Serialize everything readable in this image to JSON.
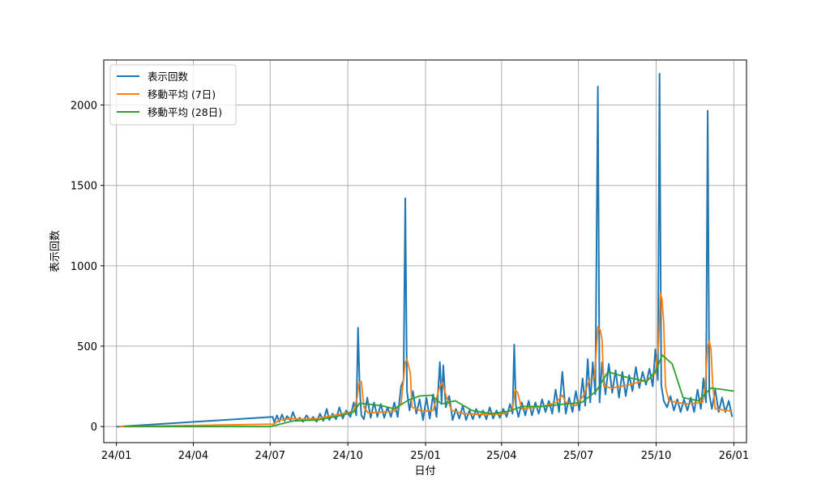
{
  "chart_data": {
    "type": "line",
    "xlabel": "日付",
    "ylabel": "表示回数",
    "x_range": [
      "2023-12-17",
      "2026-01-16"
    ],
    "ylim": [
      -100,
      2280
    ],
    "grid": true,
    "legend_position": "top-left",
    "x_ticks": [
      {
        "date": "2024-01-01",
        "label": "24/01"
      },
      {
        "date": "2024-04-01",
        "label": "24/04"
      },
      {
        "date": "2024-07-01",
        "label": "24/07"
      },
      {
        "date": "2024-10-01",
        "label": "24/10"
      },
      {
        "date": "2025-01-01",
        "label": "25/01"
      },
      {
        "date": "2025-04-01",
        "label": "25/04"
      },
      {
        "date": "2025-07-01",
        "label": "25/07"
      },
      {
        "date": "2025-10-01",
        "label": "25/10"
      },
      {
        "date": "2026-01-01",
        "label": "26/01"
      }
    ],
    "y_ticks": [
      {
        "value": 0,
        "label": "0"
      },
      {
        "value": 500,
        "label": "500"
      },
      {
        "value": 1000,
        "label": "1000"
      },
      {
        "value": 1500,
        "label": "1500"
      },
      {
        "value": 2000,
        "label": "2000"
      }
    ],
    "series": [
      {
        "name": "表示回数",
        "color": "#1f77b4",
        "points": [
          [
            "2024-01-01",
            0
          ],
          [
            "2024-01-04",
            0
          ],
          [
            "2024-07-04",
            60
          ],
          [
            "2024-07-06",
            25
          ],
          [
            "2024-07-09",
            70
          ],
          [
            "2024-07-12",
            30
          ],
          [
            "2024-07-15",
            75
          ],
          [
            "2024-07-18",
            35
          ],
          [
            "2024-07-21",
            65
          ],
          [
            "2024-07-25",
            40
          ],
          [
            "2024-07-28",
            90
          ],
          [
            "2024-08-01",
            35
          ],
          [
            "2024-08-05",
            55
          ],
          [
            "2024-08-09",
            30
          ],
          [
            "2024-08-13",
            70
          ],
          [
            "2024-08-17",
            40
          ],
          [
            "2024-08-21",
            60
          ],
          [
            "2024-08-25",
            30
          ],
          [
            "2024-08-29",
            80
          ],
          [
            "2024-09-02",
            35
          ],
          [
            "2024-09-06",
            110
          ],
          [
            "2024-09-09",
            40
          ],
          [
            "2024-09-13",
            80
          ],
          [
            "2024-09-17",
            45
          ],
          [
            "2024-09-21",
            120
          ],
          [
            "2024-09-25",
            50
          ],
          [
            "2024-09-29",
            100
          ],
          [
            "2024-10-04",
            60
          ],
          [
            "2024-10-08",
            150
          ],
          [
            "2024-10-11",
            70
          ],
          [
            "2024-10-13",
            615
          ],
          [
            "2024-10-15",
            250
          ],
          [
            "2024-10-17",
            70
          ],
          [
            "2024-10-20",
            45
          ],
          [
            "2024-10-24",
            180
          ],
          [
            "2024-10-28",
            55
          ],
          [
            "2024-11-01",
            150
          ],
          [
            "2024-11-05",
            60
          ],
          [
            "2024-11-09",
            140
          ],
          [
            "2024-11-13",
            55
          ],
          [
            "2024-11-17",
            120
          ],
          [
            "2024-11-21",
            60
          ],
          [
            "2024-11-25",
            150
          ],
          [
            "2024-11-29",
            60
          ],
          [
            "2024-12-03",
            250
          ],
          [
            "2024-12-06",
            290
          ],
          [
            "2024-12-08",
            1420
          ],
          [
            "2024-12-10",
            220
          ],
          [
            "2024-12-13",
            100
          ],
          [
            "2024-12-17",
            220
          ],
          [
            "2024-12-21",
            80
          ],
          [
            "2024-12-25",
            170
          ],
          [
            "2024-12-29",
            40
          ],
          [
            "2025-01-02",
            180
          ],
          [
            "2025-01-06",
            50
          ],
          [
            "2025-01-10",
            200
          ],
          [
            "2025-01-14",
            60
          ],
          [
            "2025-01-18",
            400
          ],
          [
            "2025-01-20",
            150
          ],
          [
            "2025-01-22",
            380
          ],
          [
            "2025-01-25",
            120
          ],
          [
            "2025-01-29",
            190
          ],
          [
            "2025-02-02",
            40
          ],
          [
            "2025-02-06",
            110
          ],
          [
            "2025-02-10",
            50
          ],
          [
            "2025-02-14",
            130
          ],
          [
            "2025-02-18",
            40
          ],
          [
            "2025-02-22",
            100
          ],
          [
            "2025-02-26",
            45
          ],
          [
            "2025-03-02",
            110
          ],
          [
            "2025-03-06",
            55
          ],
          [
            "2025-03-10",
            100
          ],
          [
            "2025-03-14",
            45
          ],
          [
            "2025-03-18",
            120
          ],
          [
            "2025-03-22",
            50
          ],
          [
            "2025-03-26",
            100
          ],
          [
            "2025-03-30",
            55
          ],
          [
            "2025-04-03",
            110
          ],
          [
            "2025-04-07",
            60
          ],
          [
            "2025-04-11",
            140
          ],
          [
            "2025-04-14",
            80
          ],
          [
            "2025-04-16",
            510
          ],
          [
            "2025-04-18",
            130
          ],
          [
            "2025-04-21",
            60
          ],
          [
            "2025-04-25",
            150
          ],
          [
            "2025-04-29",
            70
          ],
          [
            "2025-05-03",
            160
          ],
          [
            "2025-05-07",
            70
          ],
          [
            "2025-05-11",
            150
          ],
          [
            "2025-05-15",
            80
          ],
          [
            "2025-05-19",
            170
          ],
          [
            "2025-05-23",
            90
          ],
          [
            "2025-05-27",
            160
          ],
          [
            "2025-05-31",
            80
          ],
          [
            "2025-06-04",
            230
          ],
          [
            "2025-06-08",
            90
          ],
          [
            "2025-06-12",
            340
          ],
          [
            "2025-06-16",
            80
          ],
          [
            "2025-06-20",
            180
          ],
          [
            "2025-06-24",
            90
          ],
          [
            "2025-06-28",
            220
          ],
          [
            "2025-07-02",
            100
          ],
          [
            "2025-07-06",
            300
          ],
          [
            "2025-07-09",
            130
          ],
          [
            "2025-07-12",
            420
          ],
          [
            "2025-07-15",
            150
          ],
          [
            "2025-07-18",
            400
          ],
          [
            "2025-07-21",
            200
          ],
          [
            "2025-07-24",
            2115
          ],
          [
            "2025-07-26",
            150
          ],
          [
            "2025-07-29",
            400
          ],
          [
            "2025-08-02",
            200
          ],
          [
            "2025-08-06",
            390
          ],
          [
            "2025-08-10",
            210
          ],
          [
            "2025-08-14",
            350
          ],
          [
            "2025-08-18",
            180
          ],
          [
            "2025-08-22",
            340
          ],
          [
            "2025-08-26",
            190
          ],
          [
            "2025-08-30",
            320
          ],
          [
            "2025-09-03",
            220
          ],
          [
            "2025-09-07",
            370
          ],
          [
            "2025-09-11",
            240
          ],
          [
            "2025-09-15",
            340
          ],
          [
            "2025-09-19",
            260
          ],
          [
            "2025-09-23",
            360
          ],
          [
            "2025-09-27",
            250
          ],
          [
            "2025-09-30",
            480
          ],
          [
            "2025-10-03",
            290
          ],
          [
            "2025-10-05",
            2195
          ],
          [
            "2025-10-07",
            260
          ],
          [
            "2025-10-10",
            160
          ],
          [
            "2025-10-14",
            120
          ],
          [
            "2025-10-18",
            190
          ],
          [
            "2025-10-22",
            100
          ],
          [
            "2025-10-26",
            170
          ],
          [
            "2025-10-30",
            90
          ],
          [
            "2025-11-03",
            170
          ],
          [
            "2025-11-07",
            100
          ],
          [
            "2025-11-11",
            180
          ],
          [
            "2025-11-15",
            90
          ],
          [
            "2025-11-19",
            230
          ],
          [
            "2025-11-23",
            110
          ],
          [
            "2025-11-26",
            300
          ],
          [
            "2025-11-29",
            150
          ],
          [
            "2025-12-01",
            1965
          ],
          [
            "2025-12-03",
            200
          ],
          [
            "2025-12-06",
            110
          ],
          [
            "2025-12-10",
            230
          ],
          [
            "2025-12-14",
            90
          ],
          [
            "2025-12-18",
            180
          ],
          [
            "2025-12-22",
            90
          ],
          [
            "2025-12-26",
            160
          ],
          [
            "2025-12-30",
            60
          ]
        ]
      },
      {
        "name": "移動平均 (7日)",
        "color": "#ff7f0e",
        "points": [
          [
            "2024-01-04",
            0
          ],
          [
            "2024-01-10",
            0
          ],
          [
            "2024-07-05",
            15
          ],
          [
            "2024-07-12",
            40
          ],
          [
            "2024-07-26",
            50
          ],
          [
            "2024-08-10",
            45
          ],
          [
            "2024-08-25",
            50
          ],
          [
            "2024-09-10",
            65
          ],
          [
            "2024-09-25",
            80
          ],
          [
            "2024-10-08",
            95
          ],
          [
            "2024-10-12",
            180
          ],
          [
            "2024-10-14",
            270
          ],
          [
            "2024-10-17",
            280
          ],
          [
            "2024-10-20",
            120
          ],
          [
            "2024-10-25",
            85
          ],
          [
            "2024-11-10",
            90
          ],
          [
            "2024-11-25",
            95
          ],
          [
            "2024-12-03",
            140
          ],
          [
            "2024-12-08",
            400
          ],
          [
            "2024-12-10",
            420
          ],
          [
            "2024-12-14",
            330
          ],
          [
            "2024-12-16",
            120
          ],
          [
            "2024-12-28",
            95
          ],
          [
            "2025-01-10",
            100
          ],
          [
            "2025-01-18",
            250
          ],
          [
            "2025-01-21",
            275
          ],
          [
            "2025-01-26",
            180
          ],
          [
            "2025-02-01",
            100
          ],
          [
            "2025-02-15",
            80
          ],
          [
            "2025-03-15",
            75
          ],
          [
            "2025-04-05",
            80
          ],
          [
            "2025-04-14",
            110
          ],
          [
            "2025-04-17",
            230
          ],
          [
            "2025-04-20",
            210
          ],
          [
            "2025-04-25",
            110
          ],
          [
            "2025-05-20",
            125
          ],
          [
            "2025-06-05",
            150
          ],
          [
            "2025-06-12",
            195
          ],
          [
            "2025-06-16",
            150
          ],
          [
            "2025-06-28",
            130
          ],
          [
            "2025-07-08",
            200
          ],
          [
            "2025-07-14",
            290
          ],
          [
            "2025-07-20",
            300
          ],
          [
            "2025-07-24",
            620
          ],
          [
            "2025-07-27",
            600
          ],
          [
            "2025-07-29",
            540
          ],
          [
            "2025-07-31",
            250
          ],
          [
            "2025-08-10",
            240
          ],
          [
            "2025-08-30",
            260
          ],
          [
            "2025-09-20",
            290
          ],
          [
            "2025-09-30",
            330
          ],
          [
            "2025-10-04",
            520
          ],
          [
            "2025-10-06",
            830
          ],
          [
            "2025-10-08",
            790
          ],
          [
            "2025-10-10",
            640
          ],
          [
            "2025-10-12",
            250
          ],
          [
            "2025-10-16",
            160
          ],
          [
            "2025-11-05",
            140
          ],
          [
            "2025-11-25",
            150
          ],
          [
            "2025-11-28",
            240
          ],
          [
            "2025-12-01",
            500
          ],
          [
            "2025-12-03",
            530
          ],
          [
            "2025-12-05",
            480
          ],
          [
            "2025-12-07",
            260
          ],
          [
            "2025-12-10",
            110
          ],
          [
            "2025-12-30",
            95
          ]
        ]
      },
      {
        "name": "移動平均 (28日)",
        "color": "#2ca02c",
        "points": [
          [
            "2024-01-10",
            0
          ],
          [
            "2024-07-01",
            0
          ],
          [
            "2024-07-28",
            35
          ],
          [
            "2024-08-25",
            40
          ],
          [
            "2024-09-20",
            65
          ],
          [
            "2024-10-08",
            90
          ],
          [
            "2024-10-15",
            145
          ],
          [
            "2024-11-10",
            130
          ],
          [
            "2024-11-25",
            110
          ],
          [
            "2024-12-12",
            165
          ],
          [
            "2024-12-25",
            190
          ],
          [
            "2025-01-08",
            195
          ],
          [
            "2025-01-20",
            140
          ],
          [
            "2025-02-05",
            160
          ],
          [
            "2025-02-25",
            100
          ],
          [
            "2025-03-20",
            80
          ],
          [
            "2025-04-10",
            95
          ],
          [
            "2025-04-25",
            125
          ],
          [
            "2025-05-20",
            125
          ],
          [
            "2025-06-15",
            140
          ],
          [
            "2025-07-05",
            150
          ],
          [
            "2025-07-22",
            220
          ],
          [
            "2025-08-05",
            340
          ],
          [
            "2025-08-25",
            310
          ],
          [
            "2025-09-20",
            280
          ],
          [
            "2025-10-01",
            350
          ],
          [
            "2025-10-08",
            445
          ],
          [
            "2025-10-20",
            390
          ],
          [
            "2025-11-02",
            180
          ],
          [
            "2025-11-20",
            160
          ],
          [
            "2025-12-05",
            240
          ],
          [
            "2025-12-20",
            230
          ],
          [
            "2026-01-01",
            220
          ]
        ]
      }
    ]
  }
}
